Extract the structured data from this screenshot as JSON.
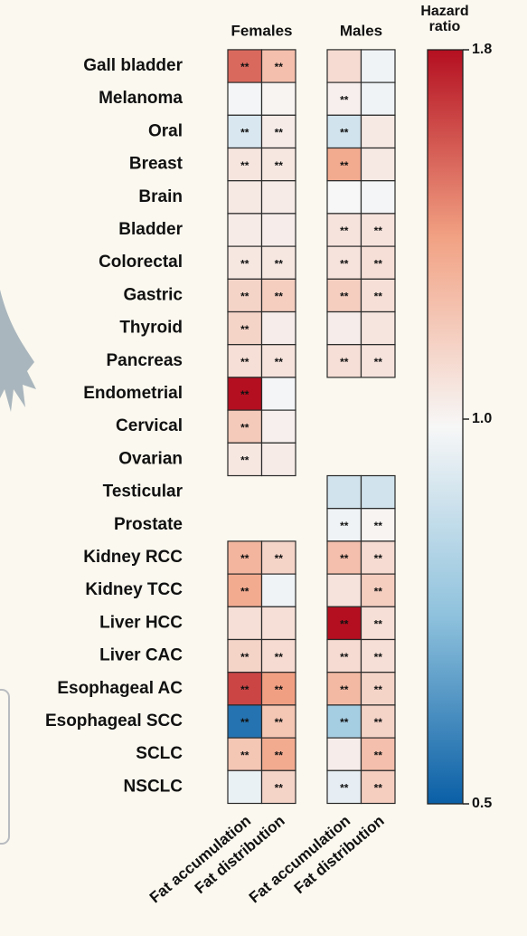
{
  "chart_data": {
    "type": "heatmap",
    "categories": [
      "Gall bladder",
      "Melanoma",
      "Oral",
      "Breast",
      "Brain",
      "Bladder",
      "Colorectal",
      "Gastric",
      "Thyroid",
      "Pancreas",
      "Endometrial",
      "Cervical",
      "Ovarian",
      "Testicular",
      "Prostate",
      "Kidney RCC",
      "Kidney TCC",
      "Liver HCC",
      "Liver CAC",
      "Esophageal AC",
      "Esophageal SCC",
      "SCLC",
      "NSCLC"
    ],
    "groups": [
      {
        "name": "Females",
        "series": [
          {
            "name": "Fat accumulation",
            "values": [
              1.55,
              0.98,
              0.92,
              1.07,
              1.05,
              1.04,
              1.06,
              1.15,
              1.15,
              1.1,
              1.8,
              1.2,
              1.06,
              null,
              null,
              1.3,
              1.35,
              1.1,
              1.15,
              1.65,
              0.55,
              1.22,
              0.96
            ],
            "significance": [
              "**",
              null,
              "**",
              "**",
              null,
              null,
              "**",
              "**",
              "**",
              "**",
              "**",
              "**",
              "**",
              null,
              null,
              "**",
              "**",
              null,
              "**",
              "**",
              "**",
              "**",
              null
            ]
          },
          {
            "name": "Fat distribution",
            "values": [
              1.25,
              1.0,
              1.04,
              1.06,
              1.04,
              1.03,
              1.06,
              1.18,
              1.03,
              1.08,
              0.98,
              1.02,
              1.04,
              null,
              null,
              1.15,
              0.97,
              1.1,
              1.12,
              1.4,
              1.22,
              1.35,
              1.15
            ],
            "significance": [
              "**",
              null,
              "**",
              "**",
              null,
              null,
              "**",
              "**",
              null,
              "**",
              null,
              null,
              null,
              null,
              null,
              "**",
              null,
              null,
              "**",
              "**",
              "**",
              "**",
              "**"
            ]
          }
        ]
      },
      {
        "name": "Males",
        "series": [
          {
            "name": "Fat accumulation",
            "values": [
              1.12,
              1.02,
              0.9,
              1.35,
              0.99,
              1.08,
              1.08,
              1.18,
              1.03,
              1.1,
              null,
              null,
              null,
              0.9,
              0.97,
              1.25,
              1.08,
              1.8,
              1.12,
              1.28,
              0.8,
              1.03,
              0.95
            ],
            "significance": [
              null,
              "**",
              "**",
              "**",
              null,
              "**",
              "**",
              "**",
              null,
              "**",
              null,
              null,
              null,
              null,
              "**",
              "**",
              null,
              "**",
              "**",
              "**",
              "**",
              null,
              "**"
            ]
          },
          {
            "name": "Fat distribution",
            "values": [
              0.97,
              0.97,
              1.05,
              1.05,
              0.98,
              1.08,
              1.1,
              1.1,
              1.07,
              1.08,
              null,
              null,
              null,
              0.9,
              1.0,
              1.12,
              1.18,
              1.1,
              1.1,
              1.15,
              1.15,
              1.25,
              1.18
            ],
            "significance": [
              null,
              null,
              null,
              null,
              null,
              "**",
              "**",
              "**",
              null,
              "**",
              null,
              null,
              null,
              null,
              "**",
              "**",
              "**",
              "**",
              "**",
              "**",
              "**",
              "**",
              "**"
            ]
          }
        ]
      }
    ],
    "colorbar_title": "Hazard ratio",
    "clim": [
      0.5,
      1.8
    ],
    "cticks": [
      0.5,
      {
        "value": 1,
        "label": "1.0"
      },
      1.8
    ],
    "colorscale": [
      "#0a5fa6",
      "#8fc2dd",
      "#f7f7f7",
      "#f2a284",
      "#b40f20"
    ]
  }
}
